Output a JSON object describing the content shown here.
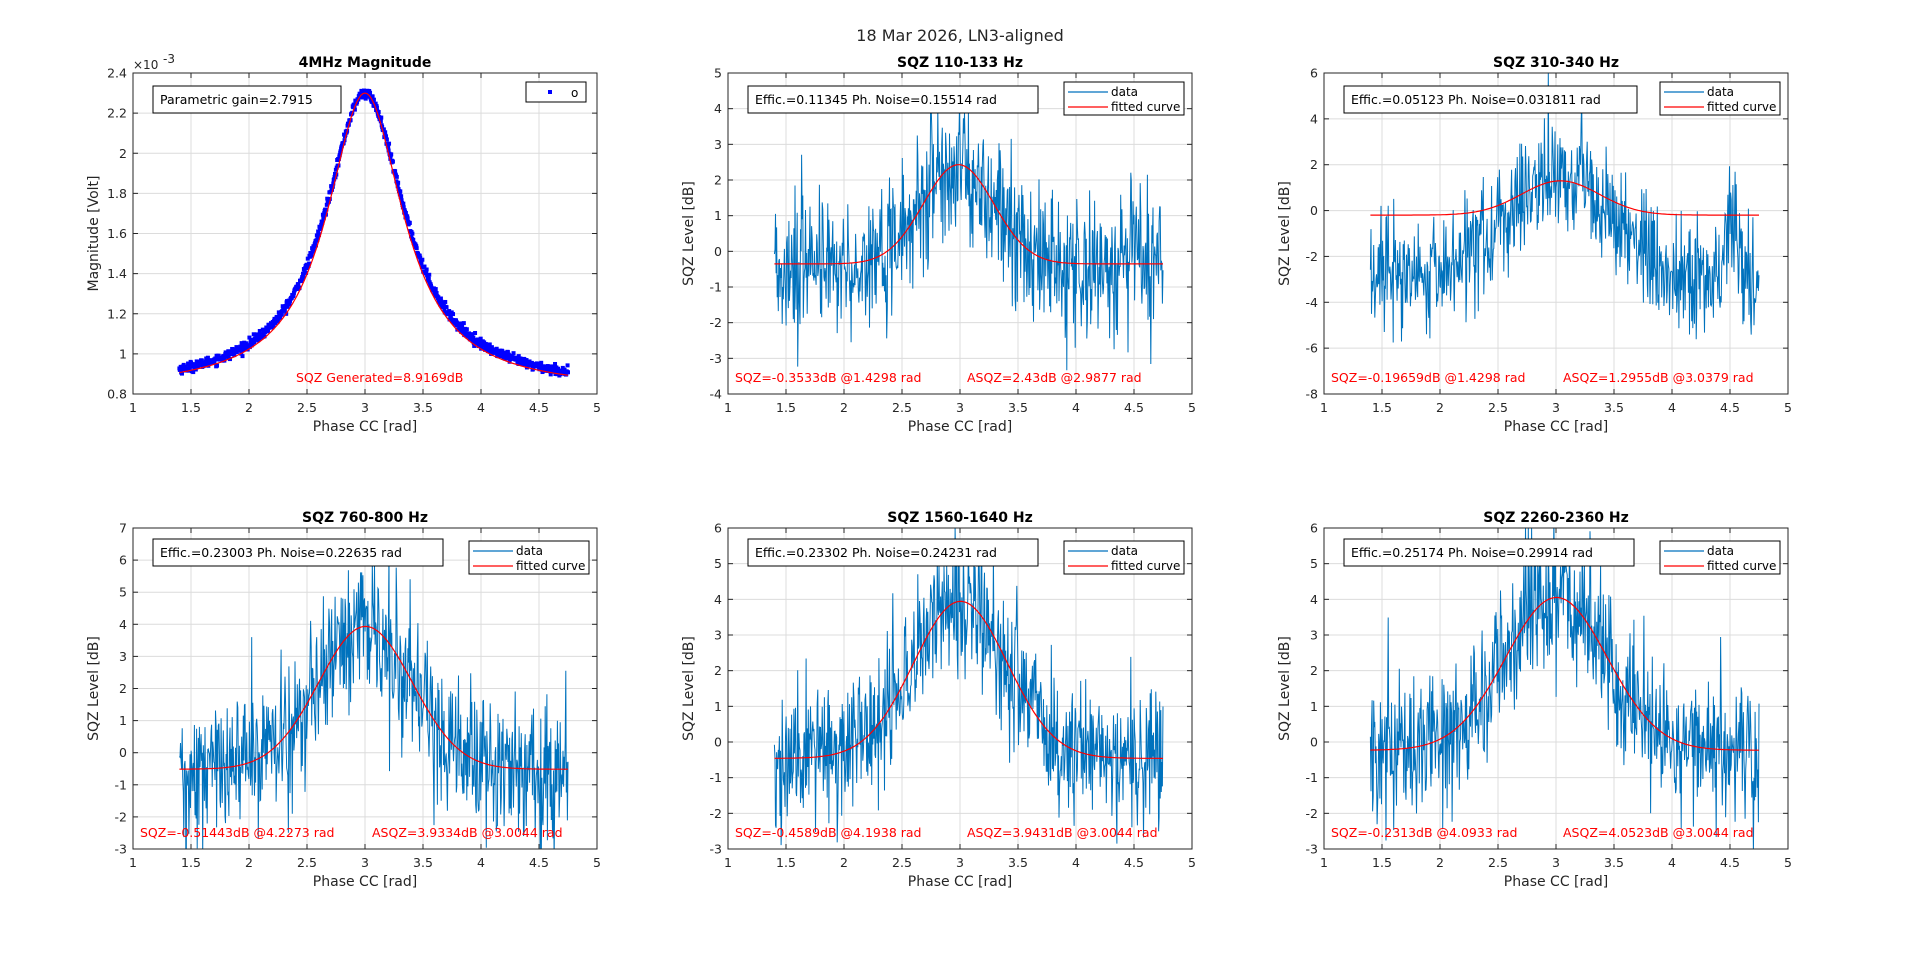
{
  "figure": {
    "suptitle": "18 Mar 2026, LN3-aligned",
    "colors": {
      "data": "#0072bd",
      "fit": "#ff0000",
      "scatter": "#0000ff",
      "grid": "#dcdcdc",
      "axis": "#262626"
    }
  },
  "chart_data": [
    {
      "type": "scatter",
      "title": "4MHz Magnitude",
      "xlabel": "Phase CC [rad]",
      "ylabel": "Magnitude [Volt]",
      "xlim": [
        1,
        5
      ],
      "ylim": [
        0.8,
        2.4
      ],
      "y_exponent": "×10",
      "y_exponent_power": "-3",
      "xticks": [
        "1",
        "1.5",
        "2",
        "2.5",
        "3",
        "3.5",
        "4",
        "4.5",
        "5"
      ],
      "yticks": [
        "0.8",
        "1",
        "1.2",
        "1.4",
        "1.6",
        "1.8",
        "2",
        "2.2",
        "2.4"
      ],
      "grid": true,
      "legend": {
        "entries": [
          "o"
        ],
        "placement": "top-right"
      },
      "info_box": "Parametric gain=2.7915",
      "bottom_annotations": [
        "SQZ Generated=8.9169dB"
      ],
      "series": [
        {
          "name": "o",
          "kind": "markers",
          "x_range": [
            1.4,
            4.75
          ],
          "baseline": 0.83,
          "peak": 2.3,
          "center": 3.0,
          "width": 0.42
        },
        {
          "name": "fit",
          "kind": "line",
          "x_range": [
            1.4,
            4.75
          ],
          "baseline": 0.82,
          "peak": 2.3,
          "center": 3.0,
          "width": 0.4
        }
      ]
    },
    {
      "type": "line",
      "title": "SQZ 110-133 Hz",
      "xlabel": "Phase CC [rad]",
      "ylabel": "SQZ Level [dB]",
      "xlim": [
        1,
        5
      ],
      "ylim": [
        -4,
        5
      ],
      "xticks": [
        "1",
        "1.5",
        "2",
        "2.5",
        "3",
        "3.5",
        "4",
        "4.5",
        "5"
      ],
      "yticks": [
        "-4",
        "-3",
        "-2",
        "-1",
        "0",
        "1",
        "2",
        "3",
        "4",
        "5"
      ],
      "grid": true,
      "legend": {
        "entries": [
          "data",
          "fitted curve"
        ],
        "placement": "top-right"
      },
      "info_box": "Effic.=0.11345  Ph. Noise=0.15514 rad",
      "bottom_annotations": [
        "SQZ=-0.3533dB  @1.4298 rad",
        "ASQZ=2.43dB  @2.9877 rad"
      ],
      "series": [
        {
          "name": "data",
          "x_range": [
            1.4,
            4.75
          ],
          "baseline": -0.35,
          "peak": 2.43,
          "center": 2.99,
          "width": 0.45,
          "noise": 1.1
        },
        {
          "name": "fitted curve",
          "x_range": [
            1.4,
            4.75
          ],
          "baseline": -0.3533,
          "peak": 2.43,
          "center": 2.9877,
          "width": 0.45
        }
      ]
    },
    {
      "type": "line",
      "title": "SQZ 310-340 Hz",
      "xlabel": "Phase CC [rad]",
      "ylabel": "SQZ Level [dB]",
      "xlim": [
        1,
        5
      ],
      "ylim": [
        -8,
        6
      ],
      "xticks": [
        "1",
        "1.5",
        "2",
        "2.5",
        "3",
        "3.5",
        "4",
        "4.5",
        "5"
      ],
      "yticks": [
        "-8",
        "-6",
        "-4",
        "-2",
        "0",
        "2",
        "4",
        "6"
      ],
      "grid": true,
      "legend": {
        "entries": [
          "data",
          "fitted curve"
        ],
        "placement": "top-right"
      },
      "info_box": "Effic.=0.05123  Ph. Noise=0.031811 rad",
      "bottom_annotations": [
        "SQZ=-0.19659dB  @1.4298 rad",
        "ASQZ=1.2955dB  @3.0379 rad"
      ],
      "series": [
        {
          "name": "data",
          "x_range": [
            1.4,
            4.75
          ],
          "baseline": -3.0,
          "peak": 1.3,
          "center": 3.04,
          "width": 0.7,
          "noise": 1.4
        },
        {
          "name": "fitted curve",
          "x_range": [
            1.4,
            4.75
          ],
          "baseline": -0.19659,
          "peak": 1.2955,
          "center": 3.0379,
          "width": 0.5
        }
      ]
    },
    {
      "type": "line",
      "title": "SQZ 760-800 Hz",
      "xlabel": "Phase CC [rad]",
      "ylabel": "SQZ Level [dB]",
      "xlim": [
        1,
        5
      ],
      "ylim": [
        -3,
        7
      ],
      "xticks": [
        "1",
        "1.5",
        "2",
        "2.5",
        "3",
        "3.5",
        "4",
        "4.5",
        "5"
      ],
      "yticks": [
        "-3",
        "-2",
        "-1",
        "0",
        "1",
        "2",
        "3",
        "4",
        "5",
        "6",
        "7"
      ],
      "grid": true,
      "legend": {
        "entries": [
          "data",
          "fitted curve"
        ],
        "placement": "top-right"
      },
      "info_box": "Effic.=0.23003  Ph. Noise=0.22635 rad",
      "bottom_annotations": [
        "SQZ=-0.51443dB  @4.2273 rad",
        "ASQZ=3.9334dB  @3.0044 rad"
      ],
      "series": [
        {
          "name": "data",
          "x_range": [
            1.4,
            4.75
          ],
          "baseline": -0.5,
          "peak": 3.93,
          "center": 3.0,
          "width": 0.6,
          "noise": 1.2
        },
        {
          "name": "fitted curve",
          "x_range": [
            1.4,
            4.75
          ],
          "baseline": -0.51443,
          "peak": 3.9334,
          "center": 3.0044,
          "width": 0.6
        }
      ]
    },
    {
      "type": "line",
      "title": "SQZ 1560-1640 Hz",
      "xlabel": "Phase CC [rad]",
      "ylabel": "SQZ Level [dB]",
      "xlim": [
        1,
        5
      ],
      "ylim": [
        -3,
        6
      ],
      "xticks": [
        "1",
        "1.5",
        "2",
        "2.5",
        "3",
        "3.5",
        "4",
        "4.5",
        "5"
      ],
      "yticks": [
        "-3",
        "-2",
        "-1",
        "0",
        "1",
        "2",
        "3",
        "4",
        "5",
        "6"
      ],
      "grid": true,
      "legend": {
        "entries": [
          "data",
          "fitted curve"
        ],
        "placement": "top-right"
      },
      "info_box": "Effic.=0.23302  Ph. Noise=0.24231 rad",
      "bottom_annotations": [
        "SQZ=-0.4589dB  @4.1938 rad",
        "ASQZ=3.9431dB  @3.0044 rad"
      ],
      "series": [
        {
          "name": "data",
          "x_range": [
            1.4,
            4.75
          ],
          "baseline": -0.45,
          "peak": 3.94,
          "center": 3.0,
          "width": 0.6,
          "noise": 1.1
        },
        {
          "name": "fitted curve",
          "x_range": [
            1.4,
            4.75
          ],
          "baseline": -0.4589,
          "peak": 3.9431,
          "center": 3.0044,
          "width": 0.6
        }
      ]
    },
    {
      "type": "line",
      "title": "SQZ 2260-2360 Hz",
      "xlabel": "Phase CC [rad]",
      "ylabel": "SQZ Level [dB]",
      "xlim": [
        1,
        5
      ],
      "ylim": [
        -3,
        6
      ],
      "xticks": [
        "1",
        "1.5",
        "2",
        "2.5",
        "3",
        "3.5",
        "4",
        "4.5",
        "5"
      ],
      "yticks": [
        "-3",
        "-2",
        "-1",
        "0",
        "1",
        "2",
        "3",
        "4",
        "5",
        "6"
      ],
      "grid": true,
      "legend": {
        "entries": [
          "data",
          "fitted curve"
        ],
        "placement": "top-right"
      },
      "info_box": "Effic.=0.25174  Ph. Noise=0.29914 rad",
      "bottom_annotations": [
        "SQZ=-0.2313dB  @4.0933 rad",
        "ASQZ=4.0523dB  @3.0044 rad"
      ],
      "series": [
        {
          "name": "data",
          "x_range": [
            1.4,
            4.75
          ],
          "baseline": -0.23,
          "peak": 4.05,
          "center": 3.0,
          "width": 0.65,
          "noise": 1.1
        },
        {
          "name": "fitted curve",
          "x_range": [
            1.4,
            4.75
          ],
          "baseline": -0.2313,
          "peak": 4.0523,
          "center": 3.0044,
          "width": 0.65
        }
      ]
    }
  ]
}
